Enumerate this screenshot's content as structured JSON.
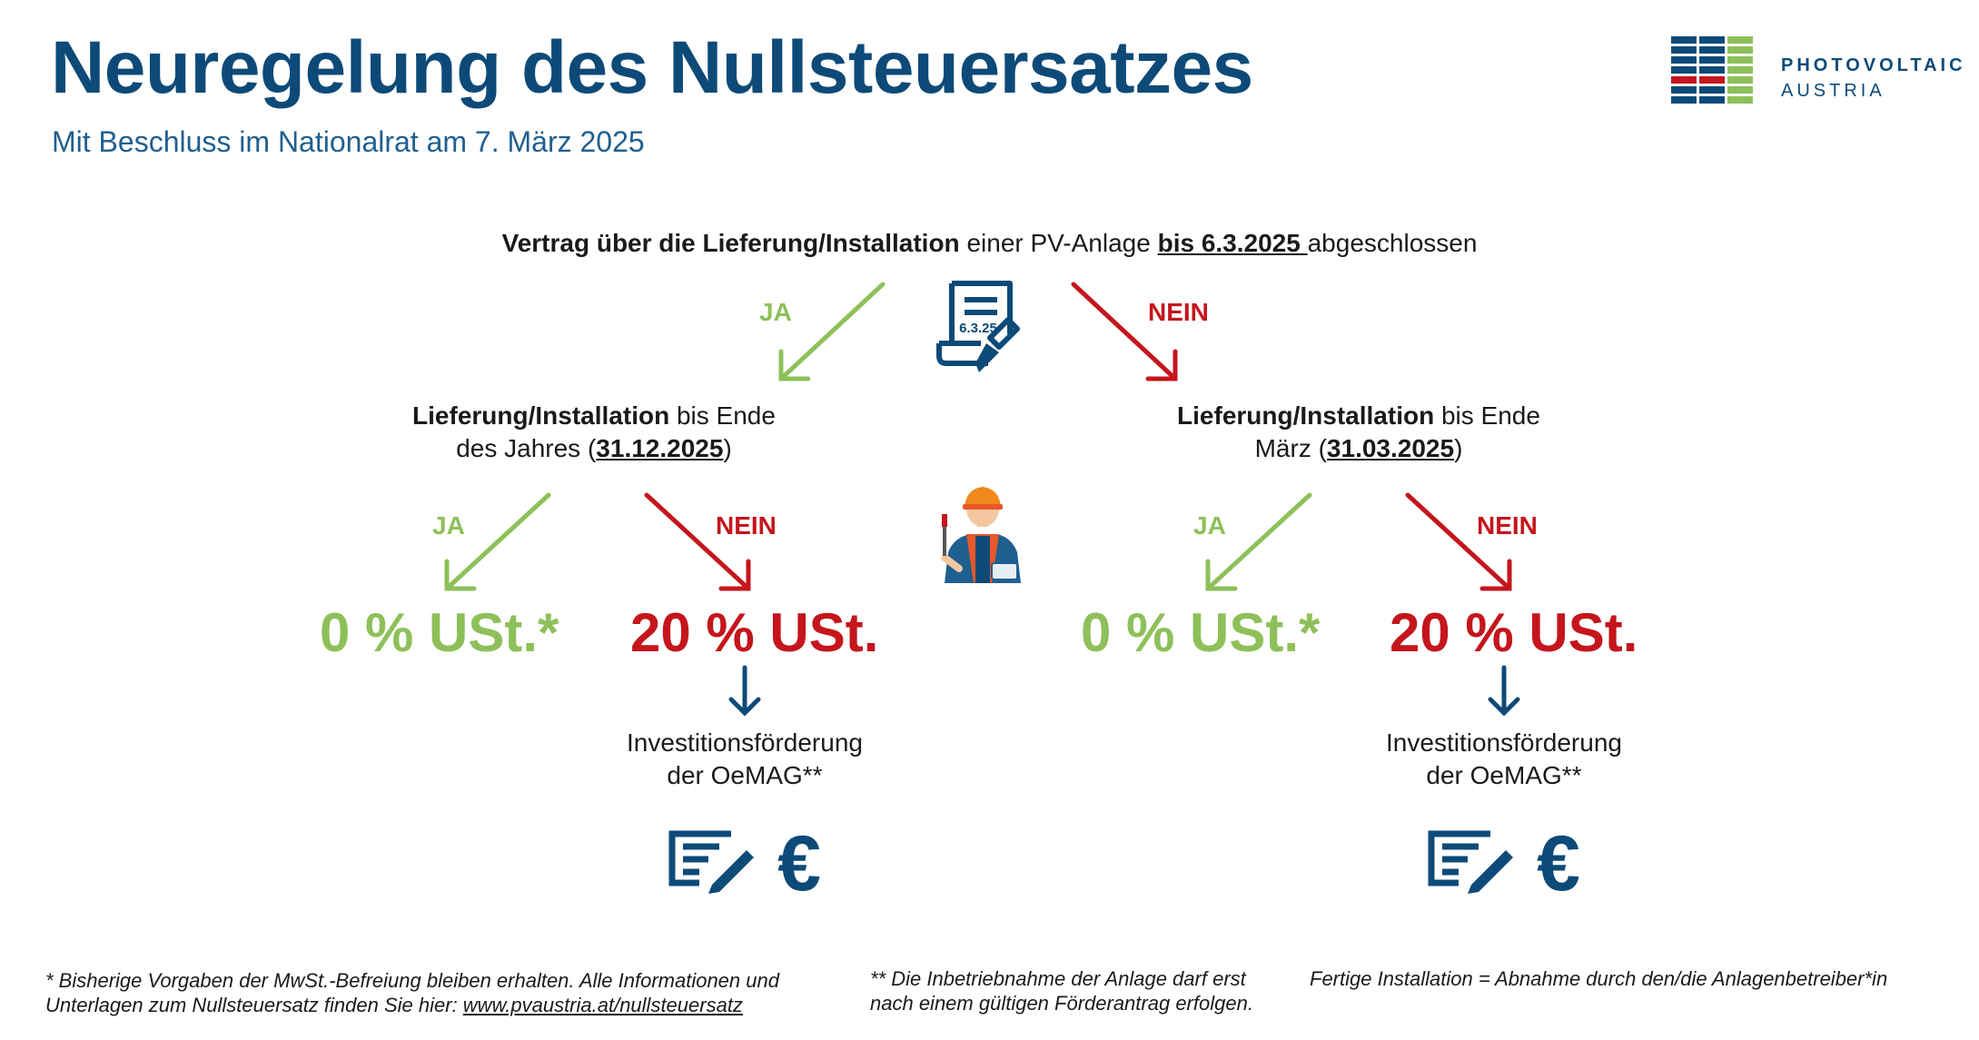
{
  "header": {
    "title": "Neuregelung des Nullsteuersatzes",
    "subtitle": "Mit Beschluss im Nationalrat am 7. März 2025"
  },
  "logo": {
    "line1": "PHOTOVOLTAIC",
    "line2": "AUSTRIA",
    "colors": {
      "blue": "#0d4a78",
      "green": "#8ec05a",
      "red": "#c4161c"
    }
  },
  "question": {
    "bold": "Vertrag über die Lieferung/Installation",
    "mid": " einer PV-Anlage ",
    "date": "bis 6.3.2025 ",
    "end": "abgeschlossen",
    "icon_date": "6.3.25",
    "icon": "contract-document-icon"
  },
  "branches": {
    "ja_label": "JA",
    "nein_label": "NEIN"
  },
  "left": {
    "cond_bold": "Lieferung/Installation",
    "cond_rest1": " bis Ende",
    "cond_rest2_pre": "des Jahres (",
    "cond_date": "31.12.2025",
    "cond_rest2_post": ")",
    "ja_label": "JA",
    "nein_label": "NEIN",
    "result_ja": "0 % USt.*",
    "result_nein": "20 % USt.",
    "funding_line1": "Investitionsförderung",
    "funding_line2": "der OeMAG**"
  },
  "right": {
    "cond_bold": "Lieferung/Installation",
    "cond_rest1": " bis Ende",
    "cond_rest2_pre": "März (",
    "cond_date": "31.03.2025",
    "cond_rest2_post": ")",
    "ja_label": "JA",
    "nein_label": "NEIN",
    "result_ja": "0 % USt.*",
    "result_nein": "20 % USt.",
    "funding_line1": "Investitionsförderung",
    "funding_line2": "der OeMAG**"
  },
  "worker_icon": "installer-worker-icon",
  "footnotes": {
    "note1_line1": "* Bisherige Vorgaben der MwSt.-Befreiung bleiben erhalten. Alle Informationen und",
    "note1_line2_pre": "Unterlagen zum Nullsteuersatz finden Sie hier: ",
    "note1_link": "www.pvaustria.at/nullsteuersatz",
    "note2_line1": "** Die Inbetriebnahme der Anlage darf erst",
    "note2_line2": "nach einem gültigen Förderantrag erfolgen.",
    "note3": "Fertige Installation = Abnahme durch den/die Anlagenbetreiber*in"
  }
}
